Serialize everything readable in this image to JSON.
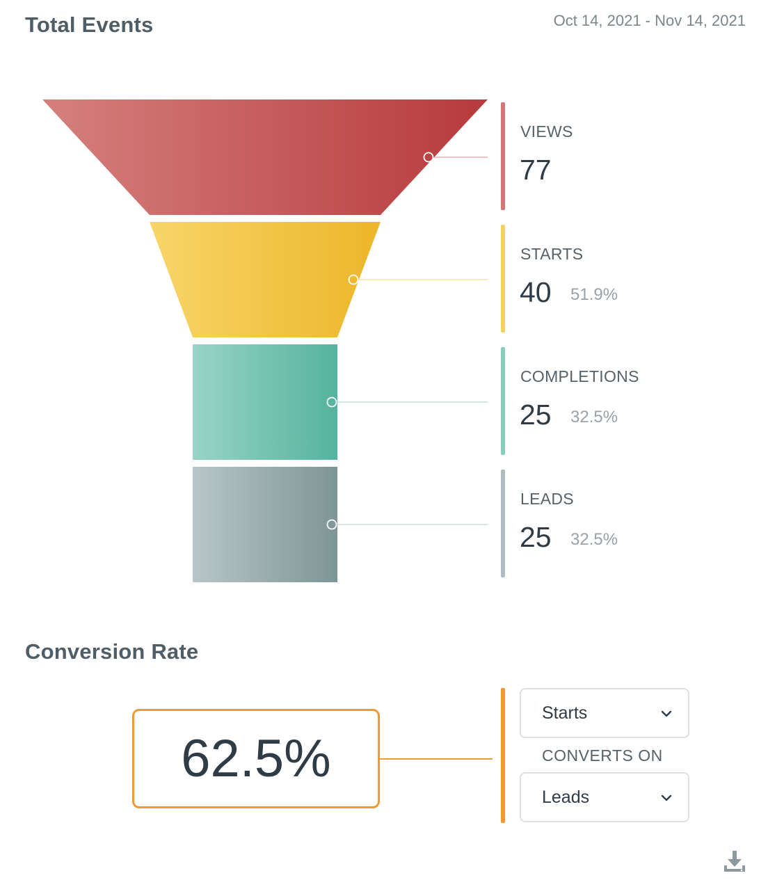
{
  "header": {
    "title": "Total Events",
    "date_range": "Oct 14, 2021 - Nov 14, 2021"
  },
  "chart_data": {
    "type": "funnel",
    "title": "Total Events",
    "stages": [
      {
        "name": "VIEWS",
        "value": 77,
        "percent": "",
        "color": "#c64a4b"
      },
      {
        "name": "STARTS",
        "value": 40,
        "percent": "51.9%",
        "color": "#f0c43e"
      },
      {
        "name": "COMPLETIONS",
        "value": 25,
        "percent": "32.5%",
        "color": "#6cc0ad"
      },
      {
        "name": "LEADS",
        "value": 25,
        "percent": "32.5%",
        "color": "#9aaeb0"
      }
    ]
  },
  "conversion": {
    "title": "Conversion Rate",
    "rate": "62.5%",
    "from_select": {
      "selected": "Starts"
    },
    "converts_on_label": "CONVERTS ON",
    "to_select": {
      "selected": "Leads"
    },
    "accent_color": "#f09a36"
  },
  "icons": {
    "download": "download-icon",
    "chevron": "chevron-down-icon"
  }
}
